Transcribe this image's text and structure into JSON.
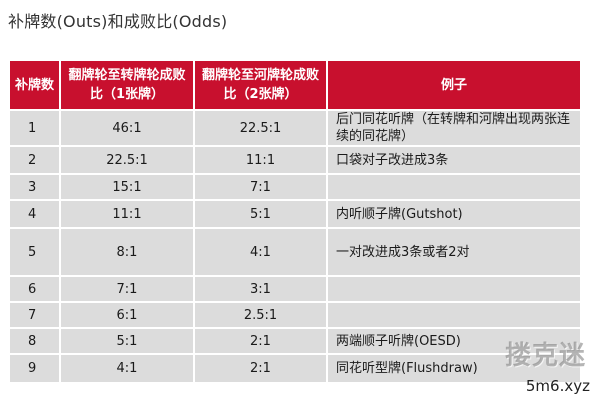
{
  "title": "补牌数(Outs)和成败比(Odds)",
  "headers": {
    "outs": "补牌数",
    "odds_flop": "翻牌轮至转牌轮成败比（1张牌）",
    "odds_turn": "翻牌轮至河牌轮成败比（2张牌）",
    "example": "例子"
  },
  "rows": [
    {
      "outs": "1",
      "odds_flop": "46:1",
      "odds_turn": "22.5:1",
      "example": "后门同花听牌（在转牌和河牌出现两张连续的同花牌）"
    },
    {
      "outs": "2",
      "odds_flop": "22.5:1",
      "odds_turn": "11:1",
      "example": "口袋对子改进成3条"
    },
    {
      "outs": "3",
      "odds_flop": "15:1",
      "odds_turn": "7:1",
      "example": ""
    },
    {
      "outs": "4",
      "odds_flop": "11:1",
      "odds_turn": "5:1",
      "example": "内听顺子牌(Gutshot)"
    },
    {
      "outs": "5",
      "odds_flop": "8:1",
      "odds_turn": "4:1",
      "example": "一对改进成3条或者2对"
    },
    {
      "outs": "6",
      "odds_flop": "7:1",
      "odds_turn": "3:1",
      "example": ""
    },
    {
      "outs": "7",
      "odds_flop": "6:1",
      "odds_turn": "2.5:1",
      "example": ""
    },
    {
      "outs": "8",
      "odds_flop": "5:1",
      "odds_turn": "2:1",
      "example": "两端顺子听牌(OESD)"
    },
    {
      "outs": "9",
      "odds_flop": "4:1",
      "odds_turn": "2:1",
      "example": "同花听型牌(Flushdraw)"
    }
  ],
  "watermark": "搂克迷",
  "site": "5m6.xyz"
}
